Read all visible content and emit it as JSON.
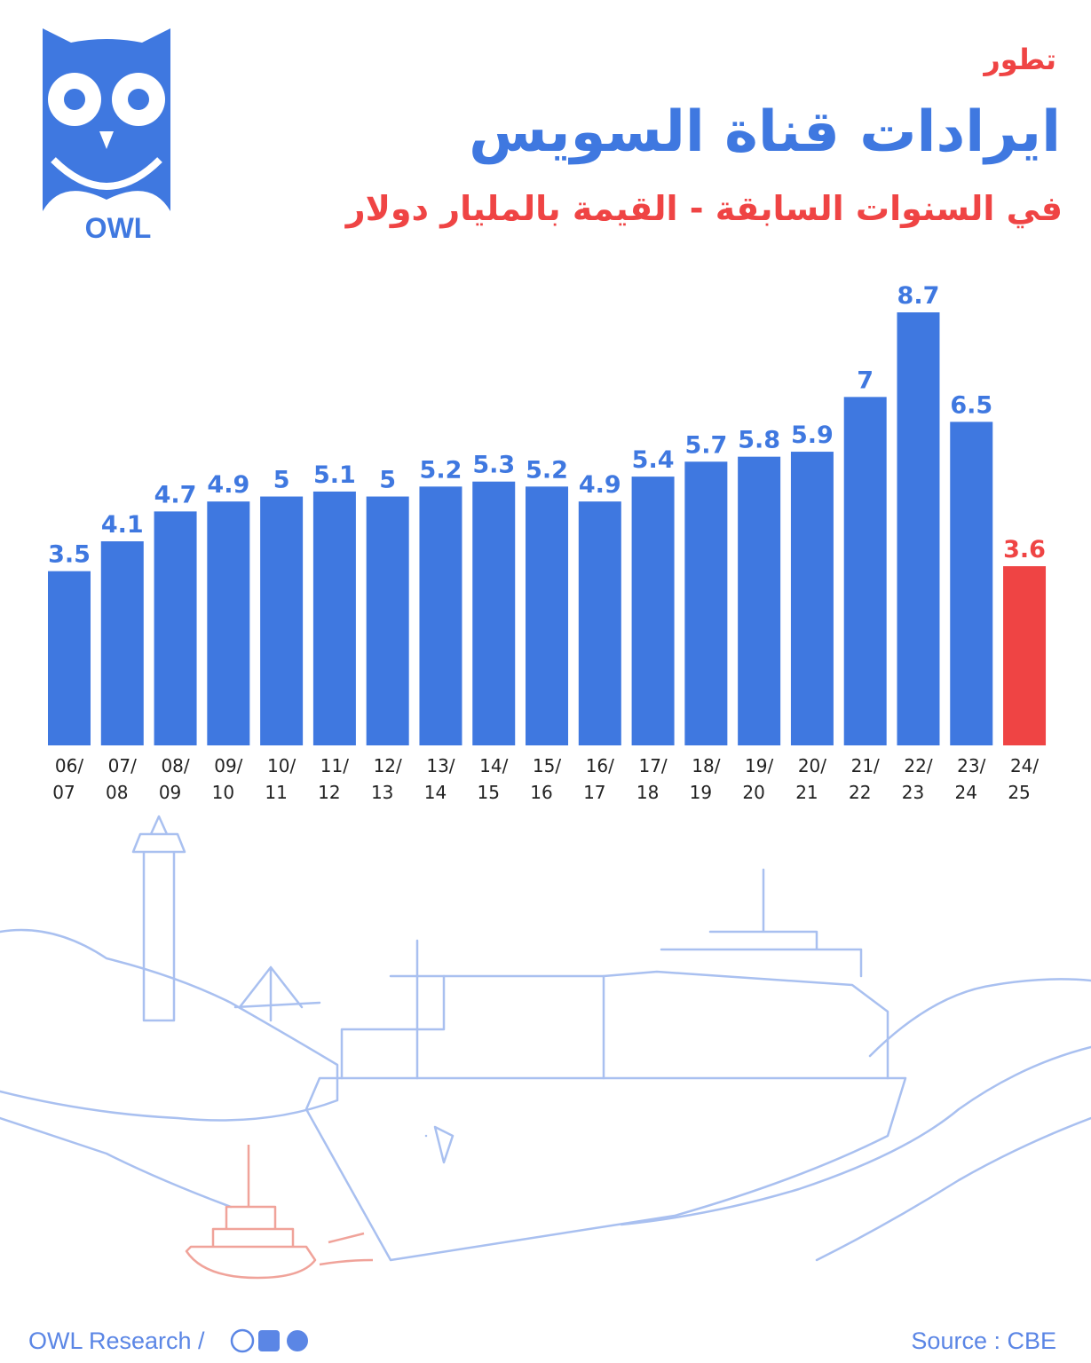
{
  "brand": "OWL",
  "chart_data": {
    "type": "bar",
    "kicker": "تطور",
    "title": "ايرادات قناة السويس",
    "subtitle": "في السنوات السابقة - القيمة بالمليار دولار",
    "categories": [
      [
        "06/",
        "07"
      ],
      [
        "07/",
        "08"
      ],
      [
        "08/",
        "09"
      ],
      [
        "09/",
        "10"
      ],
      [
        "10/",
        "11"
      ],
      [
        "11/",
        "12"
      ],
      [
        "12/",
        "13"
      ],
      [
        "13/",
        "14"
      ],
      [
        "14/",
        "15"
      ],
      [
        "15/",
        "16"
      ],
      [
        "16/",
        "17"
      ],
      [
        "17/",
        "18"
      ],
      [
        "18/",
        "19"
      ],
      [
        "19/",
        "20"
      ],
      [
        "20/",
        "21"
      ],
      [
        "21/",
        "22"
      ],
      [
        "22/",
        "23"
      ],
      [
        "23/",
        "24"
      ],
      [
        "24/",
        "25"
      ]
    ],
    "values": [
      3.5,
      4.1,
      4.7,
      4.9,
      5,
      5.1,
      5,
      5.2,
      5.3,
      5.2,
      4.9,
      5.4,
      5.7,
      5.8,
      5.9,
      7,
      8.7,
      6.5,
      3.6
    ],
    "colors": [
      "#3f78e0",
      "#3f78e0",
      "#3f78e0",
      "#3f78e0",
      "#3f78e0",
      "#3f78e0",
      "#3f78e0",
      "#3f78e0",
      "#3f78e0",
      "#3f78e0",
      "#3f78e0",
      "#3f78e0",
      "#3f78e0",
      "#3f78e0",
      "#3f78e0",
      "#3f78e0",
      "#3f78e0",
      "#3f78e0",
      "#ef4444"
    ],
    "ylim": [
      0,
      8.7
    ]
  },
  "footer": {
    "left": "OWL Research /",
    "right": "Source : CBE"
  }
}
